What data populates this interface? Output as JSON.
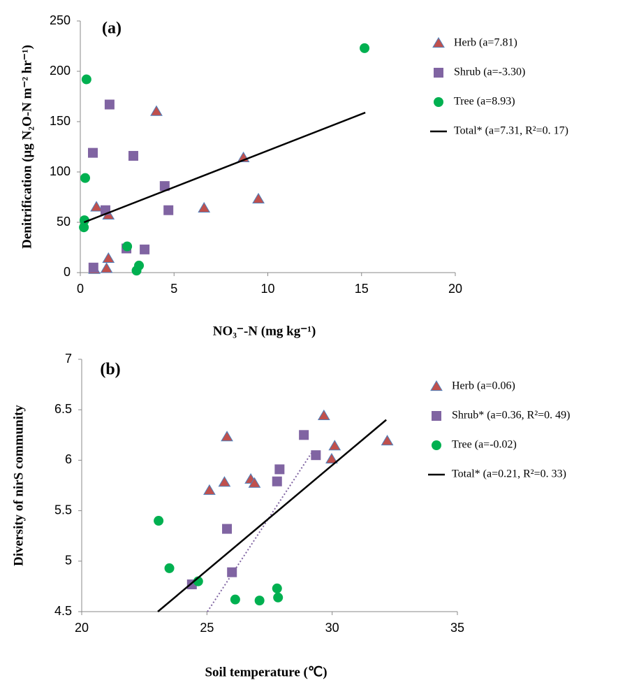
{
  "chart_data": [
    {
      "type": "scatter",
      "label": "(a)",
      "xlabel": "NO₃⁻-N  (mg kg⁻¹)",
      "ylabel": "Denitrification (μg N₂O-N m⁻² hr⁻¹)",
      "xlim": [
        0,
        20
      ],
      "ylim": [
        0,
        250
      ],
      "xticks": [
        0,
        5,
        10,
        15,
        20
      ],
      "yticks": [
        0,
        50,
        100,
        150,
        200,
        250
      ],
      "series": [
        {
          "name": "Herb (a=7.81)",
          "color": "#c0504d",
          "marker": "triangle",
          "x": [
            0.86,
            1.5,
            1.5,
            1.4,
            0.75,
            4.06,
            6.6,
            8.7,
            9.5
          ],
          "y": [
            65,
            57,
            14,
            4,
            3,
            160,
            64,
            114,
            73
          ]
        },
        {
          "name": "Shrub (a=-3.30)",
          "color": "#8064a2",
          "marker": "square",
          "x": [
            0.67,
            1.56,
            1.34,
            2.83,
            4.5,
            4.7,
            3.43,
            2.46,
            0.7
          ],
          "y": [
            119,
            167,
            62,
            116,
            86,
            62,
            23,
            24,
            5
          ]
        },
        {
          "name": "Tree (a=8.93)",
          "color": "#00b050",
          "marker": "circle",
          "x": [
            0.33,
            0.26,
            0.22,
            0.19,
            2.5,
            3.13,
            3.0,
            15.16
          ],
          "y": [
            192,
            94,
            52,
            45,
            26,
            7,
            2,
            223
          ]
        }
      ],
      "lines": [
        {
          "name": "Total* (a=7.31, R²=0. 17)",
          "color": "#000000",
          "x": [
            0.2,
            15.2
          ],
          "y": [
            50,
            159
          ]
        }
      ]
    },
    {
      "type": "scatter",
      "label": "(b)",
      "xlabel": "Soil temperature (℃)",
      "ylabel": "Diversity of nirS community",
      "xlim": [
        20,
        35
      ],
      "ylim": [
        4.5,
        7
      ],
      "xticks": [
        20,
        25,
        30,
        35
      ],
      "yticks": [
        4.5,
        5,
        5.5,
        6,
        6.5,
        7
      ],
      "series": [
        {
          "name": "Herb (a=0.06)",
          "color": "#c0504d",
          "marker": "triangle",
          "x": [
            25.8,
            25.1,
            25.7,
            26.75,
            26.9,
            29.67,
            30.1,
            29.98,
            32.2
          ],
          "y": [
            6.23,
            5.7,
            5.78,
            5.81,
            5.77,
            6.44,
            6.14,
            6.01,
            6.19
          ]
        },
        {
          "name": "Shrub* (a=0.36, R²=0. 49)",
          "color": "#8064a2",
          "marker": "square",
          "x": [
            28.87,
            29.35,
            27.9,
            27.8,
            25.8,
            26.0,
            24.4
          ],
          "y": [
            6.25,
            6.05,
            5.91,
            5.79,
            5.32,
            4.89,
            4.77
          ],
          "trend_x": [
            25.02,
            29.17
          ],
          "trend_y": [
            4.5,
            6.07
          ]
        },
        {
          "name": "Tree (a=-0.02)",
          "color": "#00b050",
          "marker": "circle",
          "x": [
            23.07,
            23.5,
            24.65,
            26.13,
            27.1,
            27.8,
            27.84
          ],
          "y": [
            5.4,
            4.93,
            4.8,
            4.62,
            4.61,
            4.73,
            4.64
          ]
        }
      ],
      "lines": [
        {
          "name": "Total* (a=0.21, R²=0. 33)",
          "color": "#000000",
          "x": [
            23.04,
            32.16
          ],
          "y": [
            4.5,
            6.4
          ]
        }
      ]
    }
  ]
}
